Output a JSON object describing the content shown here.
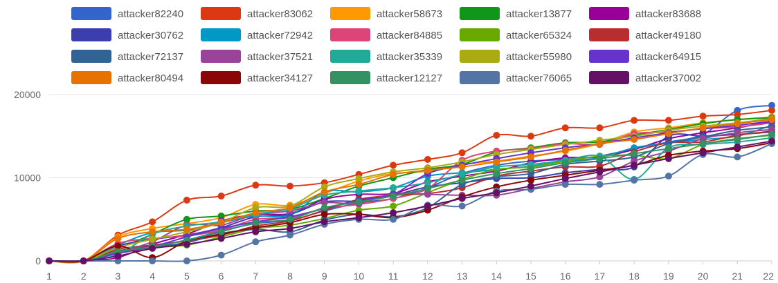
{
  "chart_data": {
    "type": "line",
    "title": "",
    "xlabel": "",
    "ylabel": "",
    "x": [
      1,
      2,
      3,
      4,
      5,
      6,
      7,
      8,
      9,
      10,
      11,
      12,
      13,
      14,
      15,
      16,
      17,
      18,
      19,
      20,
      21,
      22
    ],
    "ylim": [
      0,
      20000
    ],
    "yticks": [
      0,
      10000,
      20000
    ],
    "grid": true,
    "legend_position": "top",
    "series": [
      {
        "name": "attacker82240",
        "color": "#3366cc",
        "values": [
          0,
          0,
          1200,
          1800,
          2500,
          3600,
          4500,
          4900,
          6000,
          7000,
          7500,
          8800,
          10500,
          11500,
          12000,
          12200,
          12600,
          13500,
          14300,
          15200,
          18100,
          18700
        ]
      },
      {
        "name": "attacker83062",
        "color": "#dc3912",
        "values": [
          0,
          0,
          3100,
          4700,
          7300,
          7800,
          9100,
          9000,
          9400,
          10400,
          11500,
          12200,
          13000,
          15100,
          15000,
          16000,
          16000,
          16900,
          16900,
          17400,
          17600,
          18100
        ]
      },
      {
        "name": "attacker58673",
        "color": "#ff9900",
        "values": [
          0,
          0,
          2900,
          3900,
          4500,
          5200,
          6800,
          6700,
          8100,
          9600,
          10500,
          10800,
          11600,
          12000,
          12600,
          13200,
          14100,
          15500,
          16000,
          16600,
          17000,
          17300
        ]
      },
      {
        "name": "attacker13877",
        "color": "#109618",
        "values": [
          0,
          0,
          1500,
          3200,
          5000,
          5400,
          6000,
          6200,
          7500,
          9000,
          10000,
          11000,
          11600,
          13100,
          13600,
          14200,
          14300,
          15100,
          15800,
          16500,
          17000,
          17200
        ]
      },
      {
        "name": "attacker83688",
        "color": "#990099",
        "values": [
          0,
          0,
          400,
          2000,
          3200,
          4800,
          5600,
          5700,
          7400,
          8000,
          8100,
          9500,
          10200,
          10800,
          11800,
          12400,
          12500,
          13400,
          14700,
          15400,
          16000,
          16800
        ]
      },
      {
        "name": "attacker30762",
        "color": "#3b3eac",
        "values": [
          0,
          0,
          1800,
          2600,
          3100,
          4000,
          5300,
          5600,
          7100,
          7200,
          7900,
          8900,
          9400,
          9900,
          10000,
          10600,
          11000,
          11300,
          15000,
          15000,
          15200,
          15500
        ]
      },
      {
        "name": "attacker72942",
        "color": "#0099c6",
        "values": [
          0,
          0,
          1900,
          3400,
          3700,
          4600,
          5400,
          5500,
          8300,
          8300,
          8800,
          10200,
          10600,
          11000,
          11400,
          12000,
          12400,
          13600,
          14200,
          14600,
          15000,
          16300
        ]
      },
      {
        "name": "attacker84885",
        "color": "#dd4477",
        "values": [
          0,
          0,
          2100,
          2700,
          3000,
          3700,
          5000,
          5200,
          6300,
          6800,
          7500,
          8700,
          12100,
          13200,
          13500,
          14100,
          14000,
          15300,
          15500,
          15900,
          16100,
          16600
        ]
      },
      {
        "name": "attacker65324",
        "color": "#66aa00",
        "values": [
          0,
          0,
          1000,
          1600,
          1900,
          2900,
          3900,
          4300,
          5100,
          6100,
          6600,
          8200,
          9800,
          11000,
          11300,
          12000,
          12600,
          12700,
          12300,
          14000,
          14700,
          15100
        ]
      },
      {
        "name": "attacker49180",
        "color": "#b82e2e",
        "values": [
          0,
          0,
          1400,
          1900,
          2400,
          3100,
          4200,
          4800,
          6100,
          7400,
          7900,
          8100,
          8800,
          10200,
          10800,
          11300,
          11400,
          13100,
          14200,
          14300,
          15100,
          15600
        ]
      },
      {
        "name": "attacker72137",
        "color": "#316395",
        "values": [
          0,
          0,
          1100,
          1700,
          2200,
          3300,
          3800,
          3500,
          4900,
          5600,
          5300,
          6400,
          9200,
          10100,
          10500,
          11600,
          12000,
          12500,
          14100,
          14900,
          15700,
          16100
        ]
      },
      {
        "name": "attacker37521",
        "color": "#994499",
        "values": [
          0,
          0,
          1000,
          2300,
          4300,
          4300,
          5600,
          6000,
          7000,
          6900,
          8100,
          8000,
          7900,
          7900,
          8700,
          9500,
          10100,
          12000,
          13200,
          14700,
          15400,
          15800
        ]
      },
      {
        "name": "attacker35339",
        "color": "#22aa99",
        "values": [
          0,
          0,
          800,
          3200,
          4200,
          4700,
          5600,
          6300,
          7900,
          8400,
          8800,
          9400,
          10400,
          11300,
          11600,
          12100,
          12600,
          9800,
          13600,
          14000,
          14300,
          14800
        ]
      },
      {
        "name": "attacker55980",
        "color": "#aaaa11",
        "values": [
          0,
          0,
          1600,
          2600,
          3500,
          4600,
          6400,
          6600,
          8900,
          9900,
          10700,
          11200,
          11900,
          12800,
          13400,
          14000,
          14500,
          15000,
          15700,
          16200,
          16600,
          17100
        ]
      },
      {
        "name": "attacker64915",
        "color": "#6633cc",
        "values": [
          0,
          0,
          900,
          1700,
          2900,
          3900,
          4700,
          5300,
          6300,
          7300,
          8000,
          10500,
          11500,
          12300,
          13000,
          13600,
          14100,
          14800,
          15400,
          15900,
          16300,
          16800
        ]
      },
      {
        "name": "attacker80494",
        "color": "#e67300",
        "values": [
          0,
          0,
          2700,
          3500,
          3800,
          4600,
          5800,
          6400,
          8300,
          9200,
          10400,
          10900,
          11300,
          11900,
          12500,
          13300,
          14100,
          14600,
          15300,
          16000,
          16500,
          17000
        ]
      },
      {
        "name": "attacker34127",
        "color": "#8b0707",
        "values": [
          0,
          0,
          1800,
          400,
          2400,
          3200,
          4000,
          4600,
          5600,
          5600,
          5200,
          6100,
          7700,
          8900,
          9700,
          10300,
          10900,
          11500,
          12700,
          13200,
          13500,
          14200
        ]
      },
      {
        "name": "attacker12127",
        "color": "#329262",
        "values": [
          0,
          0,
          1100,
          1700,
          2500,
          3500,
          4600,
          5000,
          6400,
          7100,
          7800,
          8700,
          9700,
          10500,
          11100,
          11800,
          12300,
          12900,
          13500,
          14100,
          14600,
          15200
        ]
      },
      {
        "name": "attacker76065",
        "color": "#5574a6",
        "values": [
          0,
          0,
          0,
          0,
          0,
          700,
          2300,
          3100,
          4400,
          5000,
          5000,
          6700,
          6600,
          8400,
          8600,
          9200,
          9200,
          9700,
          10200,
          12800,
          12500,
          14100
        ]
      },
      {
        "name": "attacker37002",
        "color": "#651067",
        "values": [
          0,
          0,
          600,
          1500,
          2000,
          2700,
          3500,
          3900,
          4700,
          5200,
          5800,
          6600,
          7500,
          8200,
          9000,
          9900,
          10700,
          11500,
          12300,
          13000,
          13700,
          14400
        ]
      }
    ]
  }
}
